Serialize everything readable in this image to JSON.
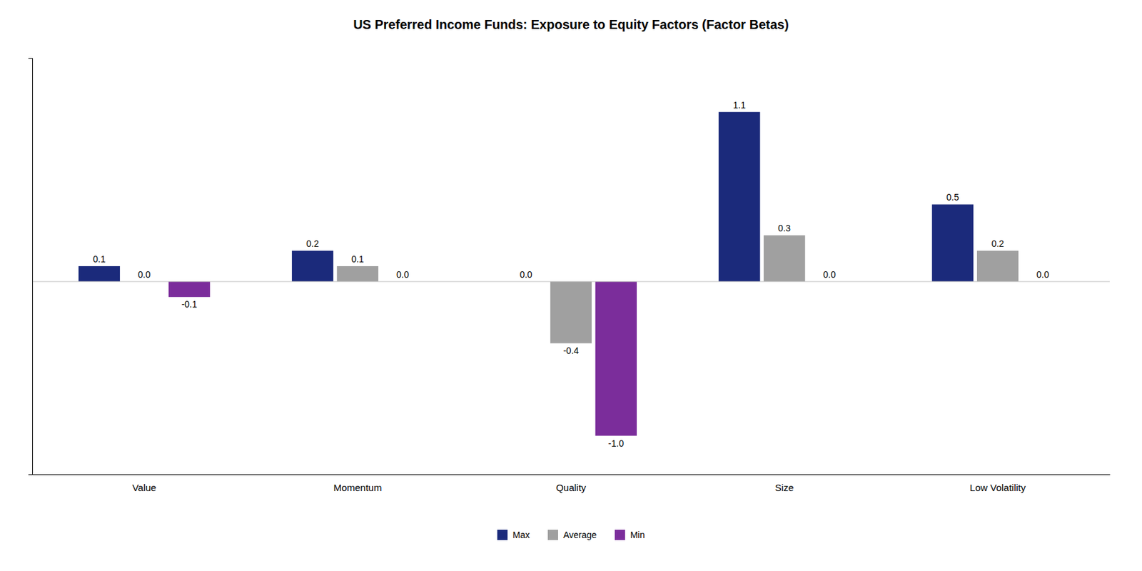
{
  "chart_data": {
    "type": "bar",
    "title": "US Preferred Income Funds: Exposure to Equity Factors (Factor Betas)",
    "categories": [
      "Value",
      "Momentum",
      "Quality",
      "Size",
      "Low Volatility"
    ],
    "series": [
      {
        "name": "Max",
        "color": "#1b2a7b",
        "values": [
          0.1,
          0.2,
          0.0,
          1.1,
          0.5
        ],
        "value_labels": [
          "0.1",
          "0.2",
          "0.0",
          "1.1",
          "0.5"
        ]
      },
      {
        "name": "Average",
        "color": "#a0a0a0",
        "values": [
          0.0,
          0.1,
          -0.4,
          0.3,
          0.2
        ],
        "value_labels": [
          "0.0",
          "0.1",
          "-0.4",
          "0.3",
          "0.2"
        ]
      },
      {
        "name": "Min",
        "color": "#7b2d9b",
        "values": [
          -0.1,
          0.0,
          -1.0,
          0.0,
          0.0
        ],
        "value_labels": [
          "-0.1",
          "0.0",
          "-1.0",
          "0.0",
          "0.0"
        ]
      }
    ],
    "ylim": [
      -1.25,
      1.45
    ],
    "yticks": [],
    "tick_labels": "x",
    "grid": false,
    "legend": "bottom",
    "data_labels": true
  }
}
